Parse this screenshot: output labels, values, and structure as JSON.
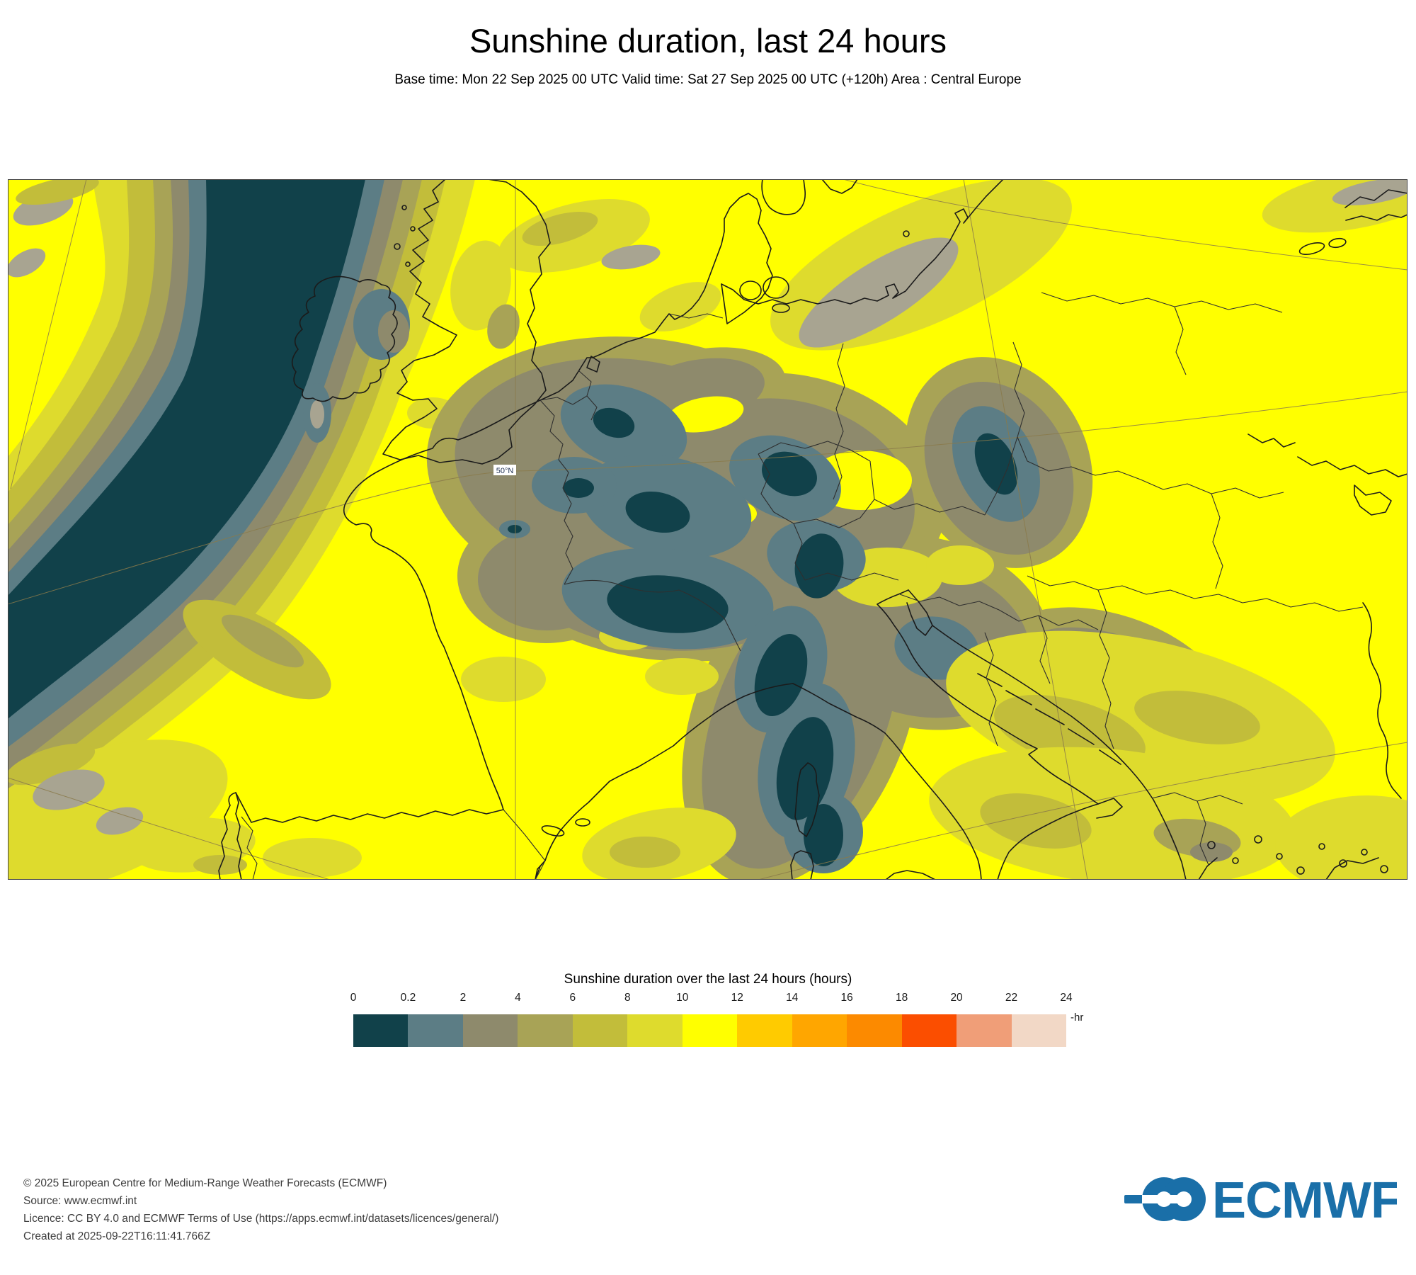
{
  "header": {
    "title": "Sunshine duration, last 24 hours",
    "subtitle": "Base time: Mon 22 Sep 2025 00 UTC Valid time: Sat 27 Sep 2025 00 UTC (+120h) Area : Central Europe"
  },
  "map": {
    "grid_label_50n": "50°N",
    "base_color": "#ffff00",
    "coastline_color": "#1b1b1b",
    "gridline_color": "#8a7a4a"
  },
  "legend": {
    "title": "Sunshine duration over the last 24 hours (hours)",
    "unit_label": "-hr",
    "tick_labels": [
      "0",
      "0.2",
      "2",
      "4",
      "6",
      "8",
      "10",
      "12",
      "14",
      "16",
      "18",
      "20",
      "22",
      "24"
    ],
    "cell_colors": [
      "#11414a",
      "#5c7d85",
      "#8e8a6c",
      "#a8a356",
      "#c2bd3a",
      "#dedb2d",
      "#ffff00",
      "#ffcb00",
      "#ffa600",
      "#fc8a00",
      "#fb4e00",
      "#f09e78",
      "#f2d8c6"
    ]
  },
  "footer": {
    "lines": [
      "© 2025 European Centre for Medium-Range Weather Forecasts (ECMWF)",
      "Source: www.ecmwf.int",
      "Licence: CC BY 4.0 and ECMWF Terms of Use (https://apps.ecmwf.int/datasets/licences/general/)",
      "Created at 2025-09-22T16:11:41.766Z"
    ]
  },
  "logo": {
    "text": "ECMWF",
    "color": "#1a6fa8"
  },
  "chart_data": {
    "type": "heatmap",
    "title": "Sunshine duration, last 24 hours",
    "variable": "Sunshine duration over the last 24 hours (hours)",
    "base_time": "Mon 22 Sep 2025 00 UTC",
    "valid_time": "Sat 27 Sep 2025 00 UTC",
    "lead_time": "+120h",
    "area": "Central Europe",
    "legend_position": "bottom center",
    "colorbar_bins_hours": [
      0,
      0.2,
      2,
      4,
      6,
      8,
      10,
      12,
      14,
      16,
      18,
      20,
      22,
      24
    ],
    "colorbar_colors": [
      "#11414a",
      "#5c7d85",
      "#8e8a6c",
      "#a8a356",
      "#c2bd3a",
      "#dedb2d",
      "#ffff00",
      "#ffcb00",
      "#ffa600",
      "#fc8a00",
      "#fb4e00",
      "#f09e78",
      "#f2d8c6"
    ],
    "grid_labels": [
      "50°N"
    ],
    "field_summary": "Bright yellow (10-12 h of sunshine) dominates most of Europe; a dark teal band (<0.2 h) runs SSW over Ireland and the NE Atlantic; low-sunshine (0-2 h) patches cover central/southern Germany, the Alps, Czechia, Slovenia, the Apennines in Italy and the Carpathians; olive/gray transition zones (2-8 h) surround them."
  }
}
